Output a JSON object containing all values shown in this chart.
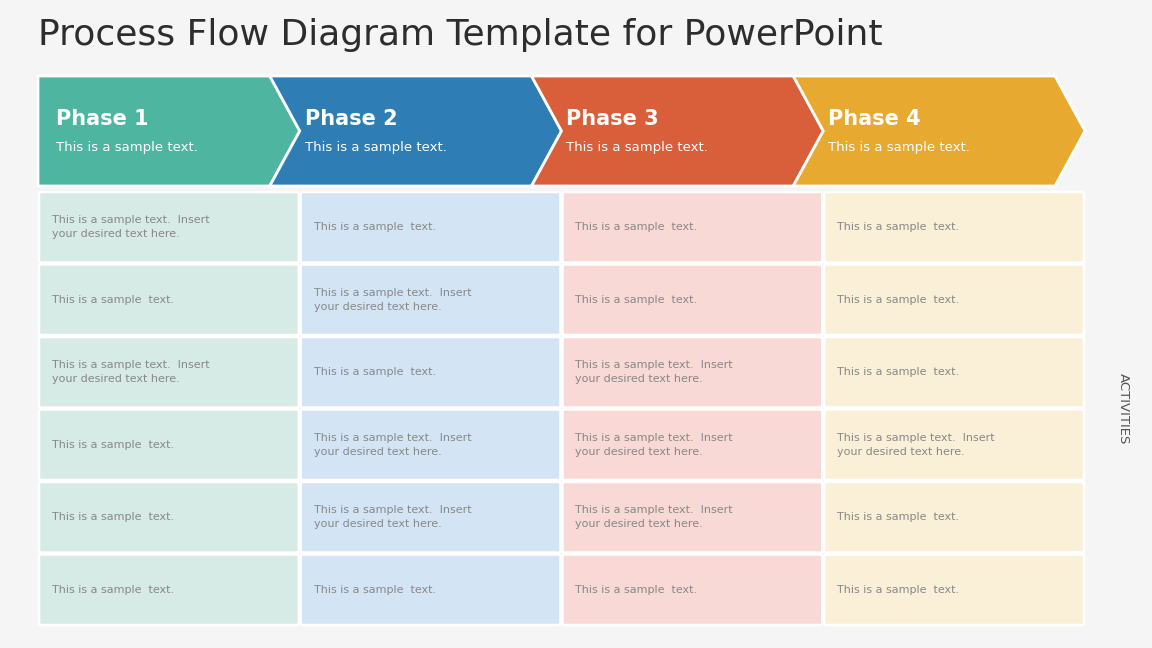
{
  "title": "Process Flow Diagram Template for PowerPoint",
  "title_fontsize": 26,
  "title_color": "#2d2d2d",
  "background_color": "#f5f5f5",
  "phases": [
    "Phase 1",
    "Phase 2",
    "Phase 3",
    "Phase 4"
  ],
  "phase_subtitles": [
    "This is a sample text.",
    "This is a sample text.",
    "This is a sample text.",
    "This is a sample text."
  ],
  "phase_colors": [
    "#4db5a0",
    "#2e7eb5",
    "#d95f3b",
    "#e8a930"
  ],
  "cell_colors": [
    "#d6eae6",
    "#d3e5f5",
    "#f8d9d5",
    "#faf0d7"
  ],
  "activities_label": "ACTIVITIES",
  "rows": 6,
  "row_texts": [
    [
      "This is a sample text.  Insert\nyour desired text here.",
      "This is a sample  text.",
      "This is a sample  text.",
      "This is a sample  text."
    ],
    [
      "This is a sample  text.",
      "This is a sample text.  Insert\nyour desired text here.",
      "This is a sample  text.",
      "This is a sample  text."
    ],
    [
      "This is a sample text.  Insert\nyour desired text here.",
      "This is a sample  text.",
      "This is a sample text.  Insert\nyour desired text here.",
      "This is a sample  text."
    ],
    [
      "This is a sample  text.",
      "This is a sample text.  Insert\nyour desired text here.",
      "This is a sample text.  Insert\nyour desired text here.",
      "This is a sample text.  Insert\nyour desired text here."
    ],
    [
      "This is a sample  text.",
      "This is a sample text.  Insert\nyour desired text here.",
      "This is a sample text.  Insert\nyour desired text here.",
      "This is a sample  text."
    ],
    [
      "This is a sample  text.",
      "This is a sample  text.",
      "This is a sample  text.",
      "This is a sample  text."
    ]
  ],
  "cell_text_color": "#888888",
  "cell_text_fontsize": 8.0,
  "phase_title_fontsize": 15,
  "phase_subtitle_fontsize": 9.5
}
